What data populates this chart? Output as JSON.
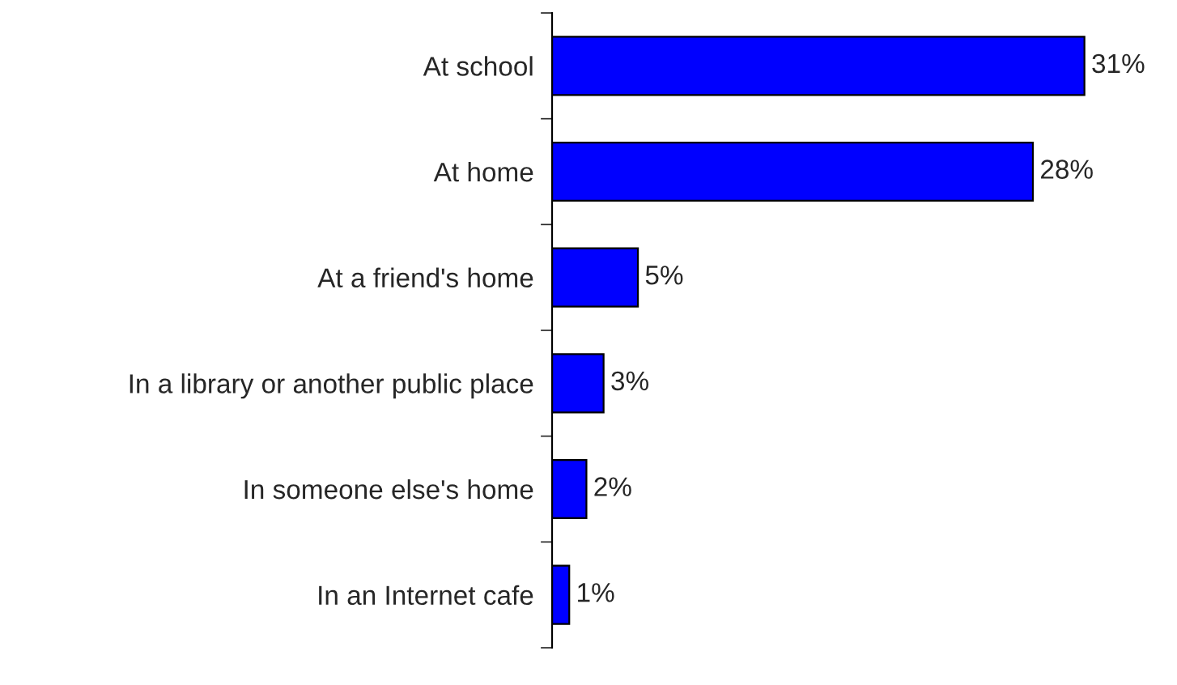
{
  "chart_data": {
    "type": "bar",
    "orientation": "horizontal",
    "categories": [
      "At school",
      "At home",
      "At a friend's home",
      "In a library or another public place",
      "In someone else's home",
      "In an Internet cafe"
    ],
    "values": [
      31,
      28,
      5,
      3,
      2,
      1
    ],
    "value_labels": [
      "31%",
      "28%",
      "5%",
      "3%",
      "2%",
      "1%"
    ],
    "color": "#0000ff",
    "grid": false,
    "legend": false
  }
}
